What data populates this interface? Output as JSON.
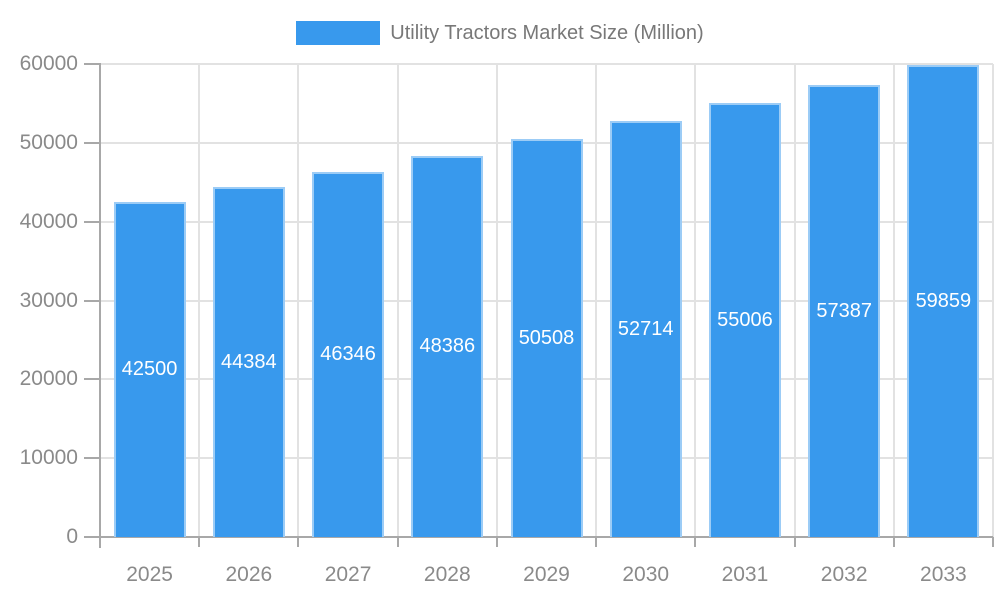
{
  "chart_data": {
    "type": "bar",
    "title": "Utility Tractors Market Size (Million)",
    "categories": [
      "2025",
      "2026",
      "2027",
      "2028",
      "2029",
      "2030",
      "2031",
      "2032",
      "2033"
    ],
    "series": [
      {
        "name": "Utility Tractors Market Size (Million)",
        "values": [
          42500,
          44384,
          46346,
          48386,
          50508,
          52714,
          55006,
          57387,
          59859
        ]
      }
    ],
    "xlabel": "",
    "ylabel": "",
    "ylim": [
      0,
      60000
    ],
    "yticks": [
      0,
      10000,
      20000,
      30000,
      40000,
      50000,
      60000
    ],
    "grid": true,
    "legend_position": "top",
    "value_labels": "inside-center"
  },
  "colors": {
    "background": "#FFFFFF",
    "bar_fill": "#3899ED",
    "bar_border": "#9CCCF6",
    "grid_line": "#E2E2E2",
    "axis_line": "#A8A8A8",
    "axis_text": "#8A8A8A",
    "legend_text": "#787878",
    "value_text": "#FFFFFF"
  }
}
